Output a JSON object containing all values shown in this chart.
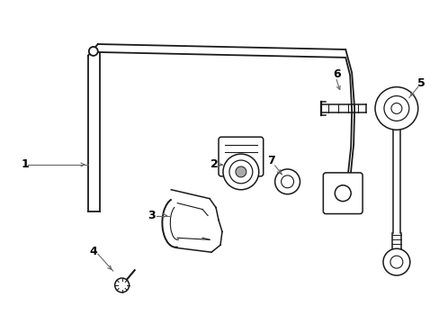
{
  "background_color": "#ffffff",
  "line_color": "#1a1a1a",
  "fig_width": 4.89,
  "fig_height": 3.6,
  "dpi": 100,
  "label_fontsize": 9,
  "callout_color": "#666666",
  "callout_lw": 0.8,
  "comp_lw": 1.1,
  "bar_lw": 1.3
}
